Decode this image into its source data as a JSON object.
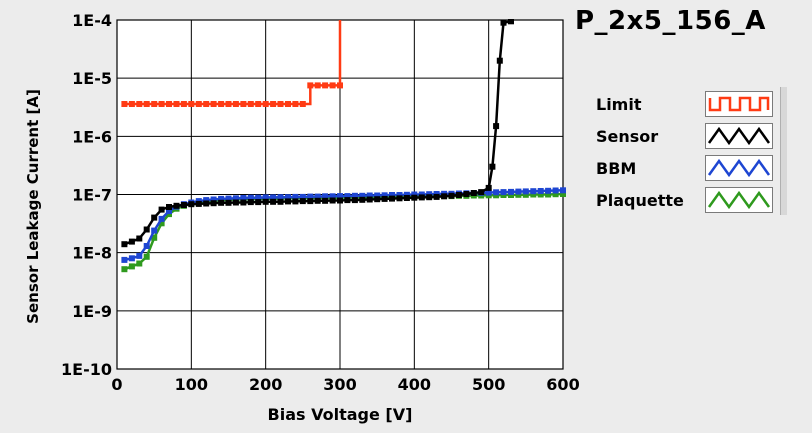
{
  "window": {
    "title": "P_2x5_156_A"
  },
  "colors": {
    "plot_bg": "#ffffff",
    "grid": "#000000",
    "frame": "#ececec"
  },
  "legend": {
    "items": [
      {
        "label": "Limit",
        "color": "#ff3b14",
        "pattern": "square-wave"
      },
      {
        "label": "Sensor",
        "color": "#000000",
        "pattern": "triangle-wave"
      },
      {
        "label": "BBM",
        "color": "#1e46d2",
        "pattern": "triangle-wave"
      },
      {
        "label": "Plaquette",
        "color": "#2f9a1e",
        "pattern": "triangle-wave"
      }
    ]
  },
  "chart_data": {
    "type": "line",
    "title": "P_2x5_156_A",
    "xlabel": "Bias Voltage [V]",
    "ylabel": "Sensor Leakage Current [A]",
    "xlim": [
      0,
      600
    ],
    "ylim": [
      1e-10,
      0.0001
    ],
    "yscale": "log",
    "grid": true,
    "legend_position": "right",
    "x_ticks": [
      0,
      100,
      200,
      300,
      400,
      500,
      600
    ],
    "x_tick_labels": [
      "0",
      "100",
      "200",
      "300",
      "400",
      "500",
      "600"
    ],
    "y_ticks": [
      1e-10,
      1e-09,
      1e-08,
      1e-07,
      1e-06,
      1e-05,
      0.0001
    ],
    "y_tick_labels": [
      "1E-10",
      "1E-9",
      "1E-8",
      "1E-7",
      "1E-6",
      "1E-5",
      "1E-4"
    ],
    "series": [
      {
        "name": "Limit",
        "color": "#ff3b14",
        "step": true,
        "points": [
          [
            10,
            3.6e-06
          ],
          [
            20,
            3.6e-06
          ],
          [
            30,
            3.6e-06
          ],
          [
            40,
            3.6e-06
          ],
          [
            50,
            3.6e-06
          ],
          [
            60,
            3.6e-06
          ],
          [
            70,
            3.6e-06
          ],
          [
            80,
            3.6e-06
          ],
          [
            90,
            3.6e-06
          ],
          [
            100,
            3.6e-06
          ],
          [
            110,
            3.6e-06
          ],
          [
            120,
            3.6e-06
          ],
          [
            130,
            3.6e-06
          ],
          [
            140,
            3.6e-06
          ],
          [
            150,
            3.6e-06
          ],
          [
            160,
            3.6e-06
          ],
          [
            170,
            3.6e-06
          ],
          [
            180,
            3.6e-06
          ],
          [
            190,
            3.6e-06
          ],
          [
            200,
            3.6e-06
          ],
          [
            210,
            3.6e-06
          ],
          [
            220,
            3.6e-06
          ],
          [
            230,
            3.6e-06
          ],
          [
            240,
            3.6e-06
          ],
          [
            250,
            3.6e-06
          ],
          [
            260,
            7.5e-06
          ],
          [
            270,
            7.5e-06
          ],
          [
            280,
            7.5e-06
          ],
          [
            290,
            7.5e-06
          ],
          [
            300,
            7.5e-06
          ],
          [
            300,
            0.0001
          ]
        ]
      },
      {
        "name": "Sensor",
        "color": "#000000",
        "points": [
          [
            10,
            1.4e-08
          ],
          [
            20,
            1.55e-08
          ],
          [
            30,
            1.75e-08
          ],
          [
            40,
            2.5e-08
          ],
          [
            50,
            4e-08
          ],
          [
            60,
            5.5e-08
          ],
          [
            70,
            6.1e-08
          ],
          [
            80,
            6.4e-08
          ],
          [
            90,
            6.6e-08
          ],
          [
            100,
            6.8e-08
          ],
          [
            110,
            6.9e-08
          ],
          [
            120,
            7e-08
          ],
          [
            130,
            7.1e-08
          ],
          [
            140,
            7.2e-08
          ],
          [
            150,
            7.2e-08
          ],
          [
            160,
            7.3e-08
          ],
          [
            170,
            7.3e-08
          ],
          [
            180,
            7.4e-08
          ],
          [
            190,
            7.4e-08
          ],
          [
            200,
            7.5e-08
          ],
          [
            210,
            7.5e-08
          ],
          [
            220,
            7.5e-08
          ],
          [
            230,
            7.6e-08
          ],
          [
            240,
            7.6e-08
          ],
          [
            250,
            7.7e-08
          ],
          [
            260,
            7.7e-08
          ],
          [
            270,
            7.8e-08
          ],
          [
            280,
            7.8e-08
          ],
          [
            290,
            7.9e-08
          ],
          [
            300,
            7.9e-08
          ],
          [
            310,
            8e-08
          ],
          [
            320,
            8e-08
          ],
          [
            330,
            8.1e-08
          ],
          [
            340,
            8.2e-08
          ],
          [
            350,
            8.3e-08
          ],
          [
            360,
            8.4e-08
          ],
          [
            370,
            8.5e-08
          ],
          [
            380,
            8.6e-08
          ],
          [
            390,
            8.7e-08
          ],
          [
            400,
            8.8e-08
          ],
          [
            410,
            8.9e-08
          ],
          [
            420,
            9e-08
          ],
          [
            430,
            9.1e-08
          ],
          [
            440,
            9.3e-08
          ],
          [
            450,
            9.5e-08
          ],
          [
            460,
            9.8e-08
          ],
          [
            470,
            1.02e-07
          ],
          [
            480,
            1.06e-07
          ],
          [
            490,
            1.1e-07
          ],
          [
            500,
            1.3e-07
          ],
          [
            505,
            3e-07
          ],
          [
            510,
            1.5e-06
          ],
          [
            515,
            2e-05
          ],
          [
            520,
            9e-05
          ],
          [
            530,
            9.5e-05
          ]
        ]
      },
      {
        "name": "BBM",
        "color": "#1e46d2",
        "points": [
          [
            10,
            7.5e-09
          ],
          [
            20,
            8e-09
          ],
          [
            30,
            8.8e-09
          ],
          [
            40,
            1.3e-08
          ],
          [
            50,
            2.4e-08
          ],
          [
            60,
            3.8e-08
          ],
          [
            70,
            5.2e-08
          ],
          [
            80,
            6.2e-08
          ],
          [
            90,
            6.8e-08
          ],
          [
            100,
            7.3e-08
          ],
          [
            110,
            7.7e-08
          ],
          [
            120,
            8e-08
          ],
          [
            130,
            8.2e-08
          ],
          [
            140,
            8.4e-08
          ],
          [
            150,
            8.5e-08
          ],
          [
            160,
            8.6e-08
          ],
          [
            170,
            8.7e-08
          ],
          [
            180,
            8.8e-08
          ],
          [
            190,
            8.8e-08
          ],
          [
            200,
            8.9e-08
          ],
          [
            210,
            8.9e-08
          ],
          [
            220,
            9e-08
          ],
          [
            230,
            9e-08
          ],
          [
            240,
            9.1e-08
          ],
          [
            250,
            9.1e-08
          ],
          [
            260,
            9.2e-08
          ],
          [
            270,
            9.2e-08
          ],
          [
            280,
            9.3e-08
          ],
          [
            290,
            9.3e-08
          ],
          [
            300,
            9.4e-08
          ],
          [
            310,
            9.4e-08
          ],
          [
            320,
            9.5e-08
          ],
          [
            330,
            9.5e-08
          ],
          [
            340,
            9.6e-08
          ],
          [
            350,
            9.6e-08
          ],
          [
            360,
            9.7e-08
          ],
          [
            370,
            9.8e-08
          ],
          [
            380,
            9.8e-08
          ],
          [
            390,
            9.9e-08
          ],
          [
            400,
            1e-07
          ],
          [
            410,
            1e-07
          ],
          [
            420,
            1.01e-07
          ],
          [
            430,
            1.02e-07
          ],
          [
            440,
            1.03e-07
          ],
          [
            450,
            1.03e-07
          ],
          [
            460,
            1.04e-07
          ],
          [
            470,
            1.05e-07
          ],
          [
            480,
            1.06e-07
          ],
          [
            490,
            1.07e-07
          ],
          [
            500,
            1.08e-07
          ],
          [
            510,
            1.09e-07
          ],
          [
            520,
            1.1e-07
          ],
          [
            530,
            1.11e-07
          ],
          [
            540,
            1.12e-07
          ],
          [
            550,
            1.13e-07
          ],
          [
            560,
            1.14e-07
          ],
          [
            570,
            1.15e-07
          ],
          [
            580,
            1.16e-07
          ],
          [
            590,
            1.17e-07
          ],
          [
            600,
            1.18e-07
          ]
        ]
      },
      {
        "name": "Plaquette",
        "color": "#2f9a1e",
        "points": [
          [
            10,
            5.2e-09
          ],
          [
            20,
            5.8e-09
          ],
          [
            30,
            6.5e-09
          ],
          [
            40,
            8.5e-09
          ],
          [
            50,
            1.8e-08
          ],
          [
            60,
            3.2e-08
          ],
          [
            70,
            4.6e-08
          ],
          [
            80,
            5.7e-08
          ],
          [
            90,
            6.4e-08
          ],
          [
            100,
            6.9e-08
          ],
          [
            110,
            7.3e-08
          ],
          [
            120,
            7.6e-08
          ],
          [
            130,
            7.8e-08
          ],
          [
            140,
            8e-08
          ],
          [
            150,
            8.1e-08
          ],
          [
            160,
            8.2e-08
          ],
          [
            170,
            8.3e-08
          ],
          [
            180,
            8.3e-08
          ],
          [
            190,
            8.4e-08
          ],
          [
            200,
            8.4e-08
          ],
          [
            210,
            8.5e-08
          ],
          [
            220,
            8.5e-08
          ],
          [
            230,
            8.6e-08
          ],
          [
            240,
            8.6e-08
          ],
          [
            250,
            8.6e-08
          ],
          [
            260,
            8.7e-08
          ],
          [
            270,
            8.7e-08
          ],
          [
            280,
            8.8e-08
          ],
          [
            290,
            8.8e-08
          ],
          [
            300,
            8.8e-08
          ],
          [
            310,
            8.9e-08
          ],
          [
            320,
            8.9e-08
          ],
          [
            330,
            9e-08
          ],
          [
            340,
            9e-08
          ],
          [
            350,
            9e-08
          ],
          [
            360,
            9.1e-08
          ],
          [
            370,
            9.1e-08
          ],
          [
            380,
            9.2e-08
          ],
          [
            390,
            9.2e-08
          ],
          [
            400,
            9.2e-08
          ],
          [
            410,
            9.3e-08
          ],
          [
            420,
            9.3e-08
          ],
          [
            430,
            9.4e-08
          ],
          [
            440,
            9.4e-08
          ],
          [
            450,
            9.4e-08
          ],
          [
            460,
            9.5e-08
          ],
          [
            470,
            9.5e-08
          ],
          [
            480,
            9.6e-08
          ],
          [
            490,
            9.6e-08
          ],
          [
            500,
            9.7e-08
          ],
          [
            510,
            9.7e-08
          ],
          [
            520,
            9.8e-08
          ],
          [
            530,
            9.8e-08
          ],
          [
            540,
            9.9e-08
          ],
          [
            550,
            9.9e-08
          ],
          [
            560,
            1e-07
          ],
          [
            570,
            1e-07
          ],
          [
            580,
            1e-07
          ],
          [
            590,
            1.01e-07
          ],
          [
            600,
            1.02e-07
          ]
        ]
      }
    ]
  }
}
